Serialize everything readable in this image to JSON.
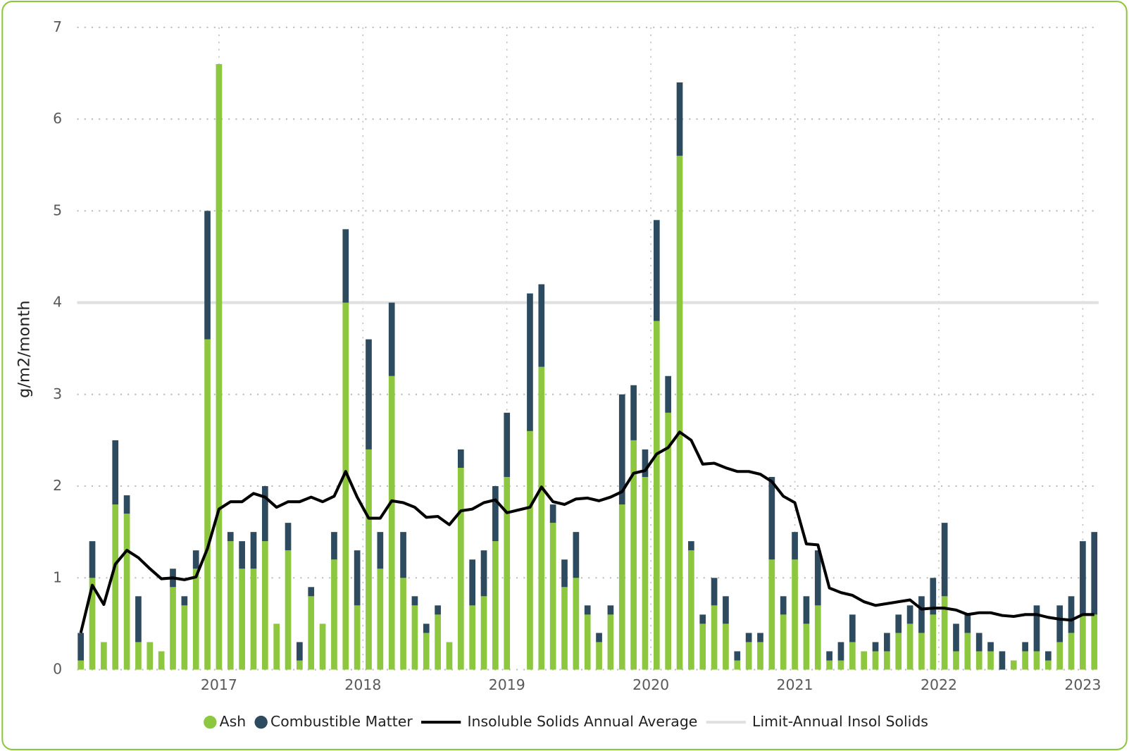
{
  "chart_data": {
    "type": "bar",
    "stacked": true,
    "y_label": "g/m2/month",
    "x": [
      2016.04,
      2016.12,
      2016.2,
      2016.28,
      2016.36,
      2016.44,
      2016.52,
      2016.6,
      2016.68,
      2016.76,
      2016.84,
      2016.92,
      2017,
      2017.08,
      2017.16,
      2017.24,
      2017.32,
      2017.4,
      2017.48,
      2017.56,
      2017.64,
      2017.72,
      2017.8,
      2017.88,
      2017.96,
      2018.04,
      2018.12,
      2018.2,
      2018.28,
      2018.36,
      2018.44,
      2018.52,
      2018.6,
      2018.68,
      2018.76,
      2018.84,
      2018.92,
      2019,
      2019.08,
      2019.16,
      2019.24,
      2019.32,
      2019.4,
      2019.48,
      2019.56,
      2019.64,
      2019.72,
      2019.8,
      2019.88,
      2019.96,
      2020.04,
      2020.12,
      2020.2,
      2020.28,
      2020.36,
      2020.44,
      2020.52,
      2020.6,
      2020.68,
      2020.76,
      2020.84,
      2020.92,
      2021,
      2021.08,
      2021.16,
      2021.24,
      2021.32,
      2021.4,
      2021.48,
      2021.56,
      2021.64,
      2021.72,
      2021.8,
      2021.88,
      2021.96,
      2022.04,
      2022.12,
      2022.2,
      2022.28,
      2022.36,
      2022.44,
      2022.52,
      2022.6,
      2022.68,
      2022.76,
      2022.84,
      2022.92,
      2023,
      2023.08
    ],
    "series": [
      {
        "name": "Ash",
        "type": "bar",
        "color": "#8dc63f",
        "values": [
          0.1,
          1.0,
          0.3,
          1.8,
          1.7,
          0.3,
          0.3,
          0.2,
          0.9,
          0.7,
          1.1,
          3.6,
          6.6,
          1.4,
          1.1,
          1.1,
          1.4,
          0.5,
          1.3,
          0.1,
          0.8,
          0.5,
          1.2,
          4.0,
          0.7,
          2.4,
          1.1,
          3.2,
          1.0,
          0.7,
          0.4,
          0.6,
          0.3,
          2.2,
          0.7,
          0.8,
          1.4,
          2.1,
          null,
          2.6,
          3.3,
          1.6,
          0.9,
          1.0,
          0.6,
          0.3,
          0.6,
          1.8,
          2.5,
          2.1,
          3.8,
          2.8,
          5.6,
          1.3,
          0.5,
          0.7,
          0.5,
          0.1,
          0.3,
          0.3,
          1.2,
          0.6,
          1.2,
          0.5,
          0.7,
          0.1,
          0.1,
          0.3,
          0.2,
          0.2,
          0.2,
          0.4,
          0.5,
          0.4,
          0.6,
          0.8,
          0.2,
          0.4,
          0.2,
          0.2,
          0,
          0.1,
          0.2,
          0.2,
          0.1,
          0.3,
          0.4,
          0.6,
          0.6
        ]
      },
      {
        "name": "Combustible Matter",
        "type": "bar",
        "color": "#2e4a5e",
        "values": [
          0.3,
          0.4,
          0,
          0.7,
          0.2,
          0.5,
          0,
          0,
          0.2,
          0.1,
          0.2,
          1.4,
          0,
          0.1,
          0.3,
          0.4,
          0.6,
          0,
          0.3,
          0.2,
          0.1,
          0,
          0.3,
          0.8,
          0.6,
          1.2,
          0.4,
          0.8,
          0.5,
          0.1,
          0.1,
          0.1,
          0,
          0.2,
          0.5,
          0.5,
          0.6,
          0.7,
          null,
          1.5,
          0.9,
          0.2,
          0.3,
          0.5,
          0.1,
          0.1,
          0.1,
          1.2,
          0.6,
          0.3,
          1.1,
          0.4,
          0.8,
          0.1,
          0.1,
          0.3,
          0.3,
          0.1,
          0.1,
          0.1,
          0.9,
          0.2,
          0.3,
          0.3,
          0.6,
          0.1,
          0.2,
          0.3,
          0,
          0.1,
          0.2,
          0.2,
          0.2,
          0.4,
          0.4,
          0.8,
          0.3,
          0.2,
          0.2,
          0.1,
          0.2,
          0,
          0.1,
          0.5,
          0.1,
          0.4,
          0.4,
          0.8,
          0.9
        ]
      },
      {
        "name": "Insoluble Solids Annual Average",
        "type": "line",
        "color": "#000000",
        "values": [
          0.4,
          0.92,
          0.71,
          1.15,
          1.3,
          1.22,
          1.1,
          0.99,
          1.0,
          0.98,
          1.01,
          1.32,
          1.75,
          1.83,
          1.83,
          1.92,
          1.88,
          1.77,
          1.83,
          1.83,
          1.88,
          1.83,
          1.89,
          2.16,
          1.88,
          1.65,
          1.65,
          1.84,
          1.82,
          1.77,
          1.66,
          1.67,
          1.58,
          1.73,
          1.75,
          1.82,
          1.85,
          1.71,
          1.74,
          1.77,
          1.99,
          1.83,
          1.8,
          1.86,
          1.87,
          1.84,
          1.88,
          1.94,
          2.14,
          2.17,
          2.35,
          2.42,
          2.59,
          2.5,
          2.24,
          2.25,
          2.2,
          2.16,
          2.16,
          2.13,
          2.05,
          1.89,
          1.82,
          1.37,
          1.36,
          0.89,
          0.84,
          0.81,
          0.74,
          0.7,
          0.72,
          0.74,
          0.76,
          0.66,
          0.67,
          0.67,
          0.65,
          0.6,
          0.62,
          0.62,
          0.59,
          0.58,
          0.6,
          0.6,
          0.57,
          0.55,
          0.54,
          0.6,
          0.6
        ]
      }
    ],
    "limit": {
      "name": "Limit-Annual Insol Solids",
      "value": 4,
      "color": "#e0e0e0"
    },
    "xlim": [
      2016,
      2023.12
    ],
    "xticks": [
      2017,
      2018,
      2019,
      2020,
      2021,
      2022,
      2023
    ],
    "ylim": [
      0,
      7
    ],
    "yticks": [
      0,
      1,
      2,
      3,
      4,
      5,
      6,
      7
    ],
    "grid": true
  }
}
